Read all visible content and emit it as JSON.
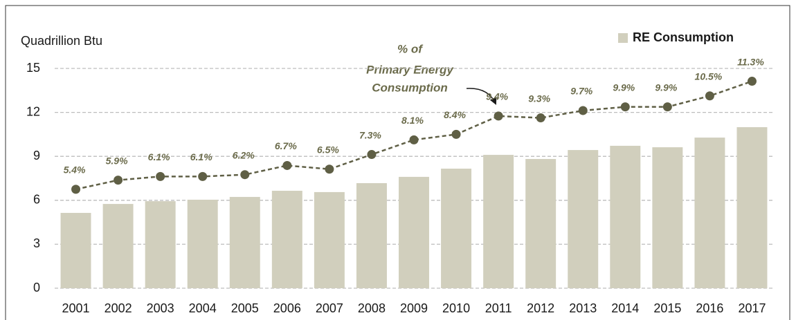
{
  "chart_data": {
    "type": "bar",
    "y_axis_label": "Quadrillion Btu",
    "annotation": [
      "% of",
      "Primary Energy",
      "Consumption"
    ],
    "categories": [
      "2001",
      "2002",
      "2003",
      "2004",
      "2005",
      "2006",
      "2007",
      "2008",
      "2009",
      "2010",
      "2011",
      "2012",
      "2013",
      "2014",
      "2015",
      "2016",
      "2017"
    ],
    "series": [
      {
        "name": "RE Consumption",
        "type": "bar",
        "color": "#d1cfbd",
        "values": [
          5.14,
          5.75,
          5.94,
          6.04,
          6.23,
          6.65,
          6.56,
          7.17,
          7.6,
          8.16,
          9.1,
          8.82,
          9.43,
          9.72,
          9.62,
          10.28,
          10.99
        ]
      },
      {
        "type": "line",
        "axis": "y2",
        "color": "#5f5f45",
        "values": [
          5.4,
          5.9,
          6.1,
          6.1,
          6.2,
          6.7,
          6.5,
          7.3,
          8.1,
          8.4,
          9.4,
          9.3,
          9.7,
          9.9,
          9.9,
          10.5,
          11.3
        ],
        "value_labels": [
          "5.4%",
          "5.9%",
          "6.1%",
          "6.1%",
          "6.2%",
          "6.7%",
          "6.5%",
          "7.3%",
          "8.1%",
          "8.4%",
          "9.4%",
          "9.3%",
          "9.7%",
          "9.9%",
          "9.9%",
          "10.5%",
          "11.3%"
        ]
      }
    ],
    "ylim": [
      0,
      15
    ],
    "yticks": [
      0,
      3,
      6,
      9,
      12,
      15
    ],
    "y2lim": [
      0,
      12
    ],
    "grid": true,
    "legend": "top-right"
  }
}
